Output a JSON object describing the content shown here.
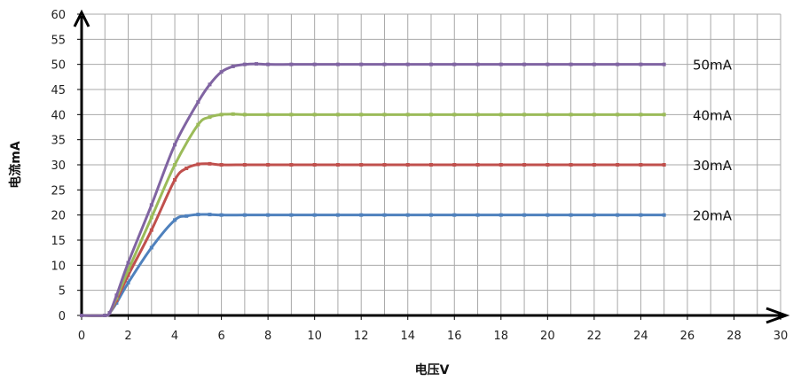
{
  "chart_data": {
    "type": "line",
    "title": "",
    "xlabel": "电压V",
    "ylabel": "电流mA",
    "xlim": [
      0,
      30
    ],
    "ylim": [
      0,
      60
    ],
    "xticks": [
      0,
      2,
      4,
      6,
      8,
      10,
      12,
      14,
      16,
      18,
      20,
      22,
      24,
      26,
      28,
      30
    ],
    "yticks": [
      0,
      5,
      10,
      15,
      20,
      25,
      30,
      35,
      40,
      45,
      50,
      55,
      60
    ],
    "grid": true,
    "legend": "none",
    "series": [
      {
        "name": "20mA",
        "color": "#4f81bd",
        "points": [
          [
            0,
            0
          ],
          [
            1,
            0
          ],
          [
            1.2,
            0.5
          ],
          [
            1.5,
            2.5
          ],
          [
            2,
            6.5
          ],
          [
            3,
            13.5
          ],
          [
            4,
            19
          ],
          [
            4.5,
            19.8
          ],
          [
            5,
            20.1
          ],
          [
            5.5,
            20.1
          ],
          [
            6,
            20
          ],
          [
            7,
            20
          ],
          [
            8,
            20
          ],
          [
            9,
            20
          ],
          [
            10,
            20
          ],
          [
            11,
            20
          ],
          [
            12,
            20
          ],
          [
            13,
            20
          ],
          [
            14,
            20
          ],
          [
            15,
            20
          ],
          [
            16,
            20
          ],
          [
            17,
            20
          ],
          [
            18,
            20
          ],
          [
            19,
            20
          ],
          [
            20,
            20
          ],
          [
            21,
            20
          ],
          [
            22,
            20
          ],
          [
            23,
            20
          ],
          [
            24,
            20
          ],
          [
            25,
            20
          ]
        ]
      },
      {
        "name": "30mA",
        "color": "#c0504d",
        "points": [
          [
            0,
            0
          ],
          [
            1,
            0
          ],
          [
            1.2,
            0.5
          ],
          [
            1.5,
            3
          ],
          [
            2,
            8
          ],
          [
            3,
            17
          ],
          [
            4,
            27
          ],
          [
            4.5,
            29.3
          ],
          [
            5,
            30.1
          ],
          [
            5.5,
            30.2
          ],
          [
            6,
            30
          ],
          [
            7,
            30
          ],
          [
            8,
            30
          ],
          [
            9,
            30
          ],
          [
            10,
            30
          ],
          [
            11,
            30
          ],
          [
            12,
            30
          ],
          [
            13,
            30
          ],
          [
            14,
            30
          ],
          [
            15,
            30
          ],
          [
            16,
            30
          ],
          [
            17,
            30
          ],
          [
            18,
            30
          ],
          [
            19,
            30
          ],
          [
            20,
            30
          ],
          [
            21,
            30
          ],
          [
            22,
            30
          ],
          [
            23,
            30
          ],
          [
            24,
            30
          ],
          [
            25,
            30
          ]
        ]
      },
      {
        "name": "40mA",
        "color": "#9bbb59",
        "points": [
          [
            0,
            0
          ],
          [
            1,
            0
          ],
          [
            1.2,
            0.5
          ],
          [
            1.5,
            3.5
          ],
          [
            2,
            9
          ],
          [
            3,
            19.5
          ],
          [
            4,
            30
          ],
          [
            5,
            38
          ],
          [
            5.5,
            39.5
          ],
          [
            6,
            40
          ],
          [
            6.5,
            40.1
          ],
          [
            7,
            40
          ],
          [
            8,
            40
          ],
          [
            9,
            40
          ],
          [
            10,
            40
          ],
          [
            11,
            40
          ],
          [
            12,
            40
          ],
          [
            13,
            40
          ],
          [
            14,
            40
          ],
          [
            15,
            40
          ],
          [
            16,
            40
          ],
          [
            17,
            40
          ],
          [
            18,
            40
          ],
          [
            19,
            40
          ],
          [
            20,
            40
          ],
          [
            21,
            40
          ],
          [
            22,
            40
          ],
          [
            23,
            40
          ],
          [
            24,
            40
          ],
          [
            25,
            40
          ]
        ]
      },
      {
        "name": "50mA",
        "color": "#8064a2",
        "points": [
          [
            0,
            0
          ],
          [
            1,
            0
          ],
          [
            1.2,
            0.5
          ],
          [
            1.5,
            4
          ],
          [
            2,
            10.5
          ],
          [
            3,
            22
          ],
          [
            4,
            34
          ],
          [
            5,
            42.5
          ],
          [
            5.5,
            46
          ],
          [
            6,
            48.5
          ],
          [
            6.5,
            49.6
          ],
          [
            7,
            50
          ],
          [
            7.5,
            50.1
          ],
          [
            8,
            50
          ],
          [
            9,
            50
          ],
          [
            10,
            50
          ],
          [
            11,
            50
          ],
          [
            12,
            50
          ],
          [
            13,
            50
          ],
          [
            14,
            50
          ],
          [
            15,
            50
          ],
          [
            16,
            50
          ],
          [
            17,
            50
          ],
          [
            18,
            50
          ],
          [
            19,
            50
          ],
          [
            20,
            50
          ],
          [
            21,
            50
          ],
          [
            22,
            50
          ],
          [
            23,
            50
          ],
          [
            24,
            50
          ],
          [
            25,
            50
          ]
        ]
      }
    ]
  }
}
